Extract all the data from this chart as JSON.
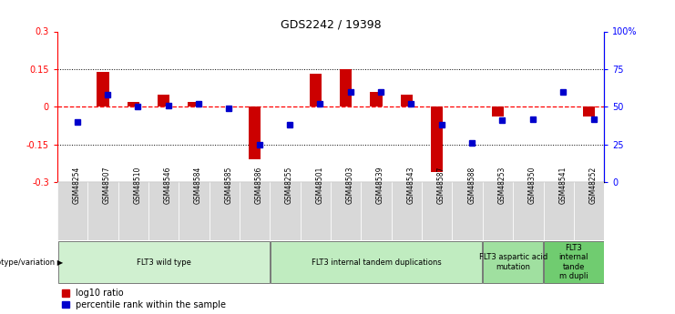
{
  "title": "GDS2242 / 19398",
  "samples": [
    "GSM48254",
    "GSM48507",
    "GSM48510",
    "GSM48546",
    "GSM48584",
    "GSM48585",
    "GSM48586",
    "GSM48255",
    "GSM48501",
    "GSM48503",
    "GSM48539",
    "GSM48543",
    "GSM48587",
    "GSM48588",
    "GSM48253",
    "GSM48350",
    "GSM48541",
    "GSM48252"
  ],
  "log10_ratio": [
    0.0,
    0.14,
    0.02,
    0.05,
    0.02,
    0.0,
    -0.21,
    0.0,
    0.13,
    0.15,
    0.06,
    0.05,
    -0.26,
    0.0,
    -0.04,
    0.0,
    0.0,
    -0.04
  ],
  "percentile_rank": [
    40,
    58,
    50,
    51,
    52,
    49,
    25,
    38,
    52,
    60,
    60,
    52,
    38,
    26,
    41,
    42,
    60,
    42
  ],
  "ylim_left": [
    -0.3,
    0.3
  ],
  "ylim_right": [
    0,
    100
  ],
  "yticks_left": [
    -0.3,
    -0.15,
    0.0,
    0.15,
    0.3
  ],
  "yticks_right": [
    0,
    25,
    50,
    75,
    100
  ],
  "ytick_labels_left": [
    "-0.3",
    "-0.15",
    "0",
    "0.15",
    "0.3"
  ],
  "ytick_labels_right": [
    "0",
    "25",
    "50",
    "75",
    "100%"
  ],
  "groups": [
    {
      "label": "FLT3 wild type",
      "start": 0,
      "end": 7,
      "color": "#d0f0d0"
    },
    {
      "label": "FLT3 internal tandem duplications",
      "start": 7,
      "end": 14,
      "color": "#c0ecc0"
    },
    {
      "label": "FLT3 aspartic acid\nmutation",
      "start": 14,
      "end": 16,
      "color": "#a0e0a0"
    },
    {
      "label": "FLT3\ninternal\ntande\nm dupli",
      "start": 16,
      "end": 18,
      "color": "#70cc70"
    }
  ],
  "bar_color_red": "#cc0000",
  "bar_color_blue": "#0000cc",
  "bg_color": "#ffffff",
  "plot_bg": "#ffffff",
  "grid_color": "#000000",
  "col_bg": "#d8d8d8"
}
